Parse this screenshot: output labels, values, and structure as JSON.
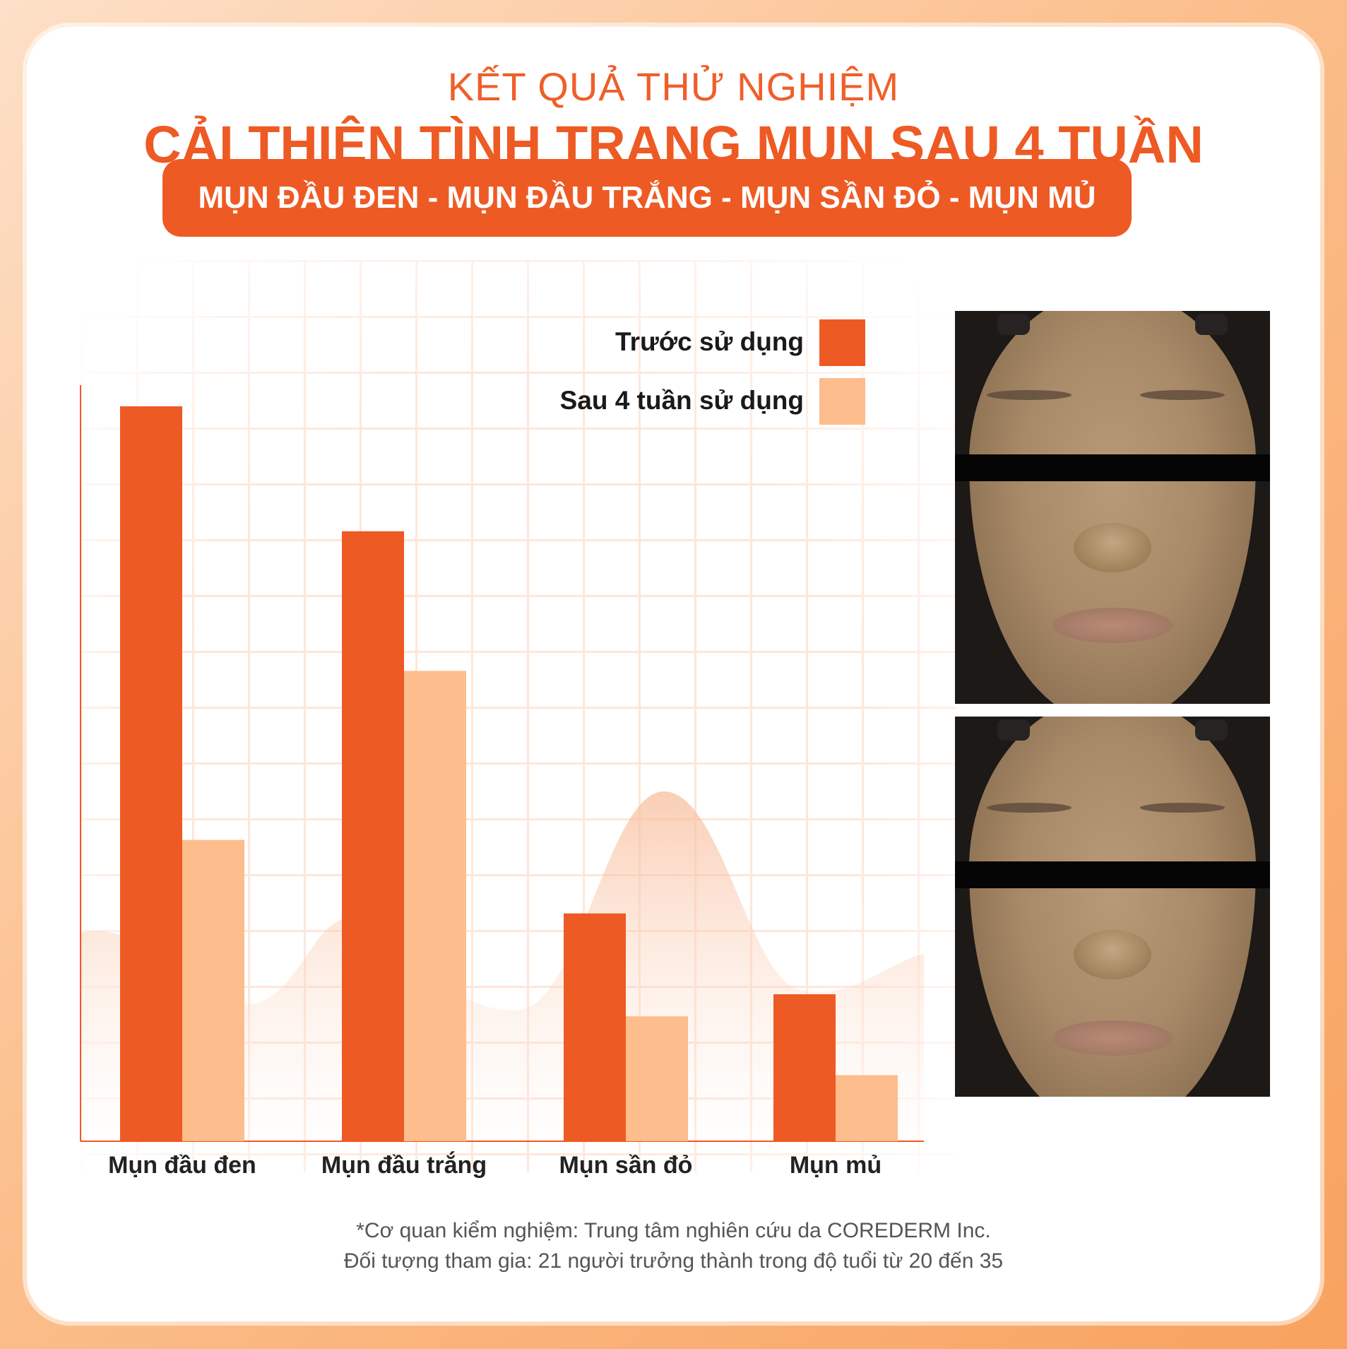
{
  "header": {
    "subtitle": "KẾT QUẢ THỬ NGHIỆM",
    "title": "CẢI THIỆN TÌNH TRẠNG MỤN SAU 4 TUẦN",
    "banner": "MỤN ĐẦU ĐEN - MỤN ĐẦU TRẮNG - MỤN SẦN ĐỎ - MỤN MỦ"
  },
  "colors": {
    "primary": "#ee5a24",
    "secondary": "#fdbd8c",
    "background": "#ffffff"
  },
  "chart_data": {
    "type": "bar",
    "categories": [
      "Mụn đầu đen",
      "Mụn đầu trắng",
      "Mụn sần đỏ",
      "Mụn mủ"
    ],
    "series": [
      {
        "name": "Trước sử dụng",
        "color": "#ee5a24",
        "values": [
          100,
          83,
          31,
          20
        ]
      },
      {
        "name": "Sau 4 tuần sử dụng",
        "color": "#fdbd8c",
        "values": [
          41,
          64,
          17,
          9
        ]
      }
    ],
    "ylim": [
      0,
      100
    ],
    "xlabel": "",
    "ylabel": "",
    "legend": "top-right",
    "grid": true
  },
  "photos": {
    "before": "face-before-photo",
    "after": "face-after-photo"
  },
  "footnote": {
    "line1": "*Cơ quan kiểm nghiệm: Trung tâm nghiên cứu da COREDERM Inc.",
    "line2": "Đối tượng tham gia: 21 người trưởng thành trong độ tuổi từ 20 đến 35"
  }
}
